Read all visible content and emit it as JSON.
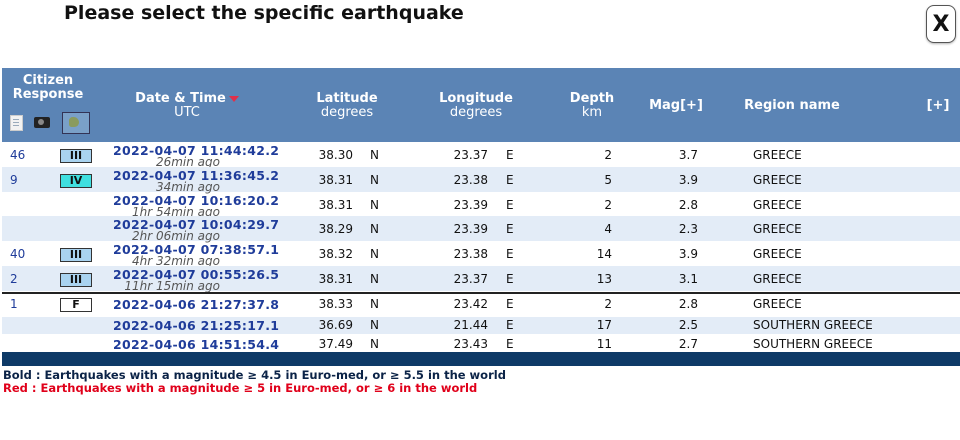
{
  "title": "Please select the specific earthquake",
  "close_label": "X",
  "header": {
    "citizen_line1": "Citizen",
    "citizen_line2": "Response",
    "date_line1": "Date & Time",
    "date_line2": "UTC",
    "lat_line1": "Latitude",
    "lat_line2": "degrees",
    "lon_line1": "Longitude",
    "lon_line2": "degrees",
    "depth_line1": "Depth",
    "depth_line2": "km",
    "mag": "Mag[+]",
    "region": "Region name",
    "plus": "[+]",
    "icons": [
      "document-icon",
      "camera-icon",
      "map-icon"
    ]
  },
  "rows": [
    {
      "responses": "46",
      "intensity": "III",
      "intensity_color": "#a9d3f0",
      "datetime": "2022-04-07   11:44:42.2",
      "ago": "26min ago",
      "lat": "38.30",
      "ns": "N",
      "lon": "23.37",
      "ew": "E",
      "depth": "2",
      "mag": "3.7",
      "region": "GREECE"
    },
    {
      "responses": "9",
      "intensity": "IV",
      "intensity_color": "#40e0e0",
      "datetime": "2022-04-07   11:36:45.2",
      "ago": "34min ago",
      "lat": "38.31",
      "ns": "N",
      "lon": "23.38",
      "ew": "E",
      "depth": "5",
      "mag": "3.9",
      "region": "GREECE"
    },
    {
      "responses": "",
      "intensity": "",
      "intensity_color": "",
      "datetime": "2022-04-07   10:16:20.2",
      "ago": "1hr 54min ago",
      "lat": "38.31",
      "ns": "N",
      "lon": "23.39",
      "ew": "E",
      "depth": "2",
      "mag": "2.8",
      "region": "GREECE"
    },
    {
      "responses": "",
      "intensity": "",
      "intensity_color": "",
      "datetime": "2022-04-07   10:04:29.7",
      "ago": "2hr 06min ago",
      "lat": "38.29",
      "ns": "N",
      "lon": "23.39",
      "ew": "E",
      "depth": "4",
      "mag": "2.3",
      "region": "GREECE"
    },
    {
      "responses": "40",
      "intensity": "III",
      "intensity_color": "#a9d3f0",
      "datetime": "2022-04-07   07:38:57.1",
      "ago": "4hr 32min ago",
      "lat": "38.32",
      "ns": "N",
      "lon": "23.38",
      "ew": "E",
      "depth": "14",
      "mag": "3.9",
      "region": "GREECE"
    },
    {
      "responses": "2",
      "intensity": "III",
      "intensity_color": "#a9d3f0",
      "datetime": "2022-04-07   00:55:26.5",
      "ago": "11hr 15min ago",
      "lat": "38.31",
      "ns": "N",
      "lon": "23.37",
      "ew": "E",
      "depth": "13",
      "mag": "3.1",
      "region": "GREECE"
    },
    {
      "responses": "1",
      "intensity": "F",
      "intensity_color": "#ffffff",
      "datetime": "2022-04-06   21:27:37.8",
      "ago": "",
      "lat": "38.33",
      "ns": "N",
      "lon": "23.42",
      "ew": "E",
      "depth": "2",
      "mag": "2.8",
      "region": "GREECE"
    },
    {
      "responses": "",
      "intensity": "",
      "intensity_color": "",
      "datetime": "2022-04-06   21:25:17.1",
      "ago": "",
      "lat": "36.69",
      "ns": "N",
      "lon": "21.44",
      "ew": "E",
      "depth": "17",
      "mag": "2.5",
      "region": "SOUTHERN GREECE"
    },
    {
      "responses": "",
      "intensity": "",
      "intensity_color": "",
      "datetime": "2022-04-06   14:51:54.4",
      "ago": "",
      "lat": "37.49",
      "ns": "N",
      "lon": "23.43",
      "ew": "E",
      "depth": "11",
      "mag": "2.7",
      "region": "SOUTHERN GREECE"
    }
  ],
  "legend": {
    "bold_text": "Bold : Earthquakes with a magnitude ≥ 4.5 in Euro-med, or ≥ 5.5 in the world",
    "red_text": "Red : Earthquakes with a magnitude ≥ 5 in Euro-med, or ≥ 6 in the world",
    "bold_color": "#0b2347",
    "red_color": "#e0001a"
  },
  "colors": {
    "header_bg": "#5b84b5",
    "row_shade": "#e3ecf7",
    "footer_bar": "#0e3a67",
    "link_blue": "#1f3c9a"
  }
}
